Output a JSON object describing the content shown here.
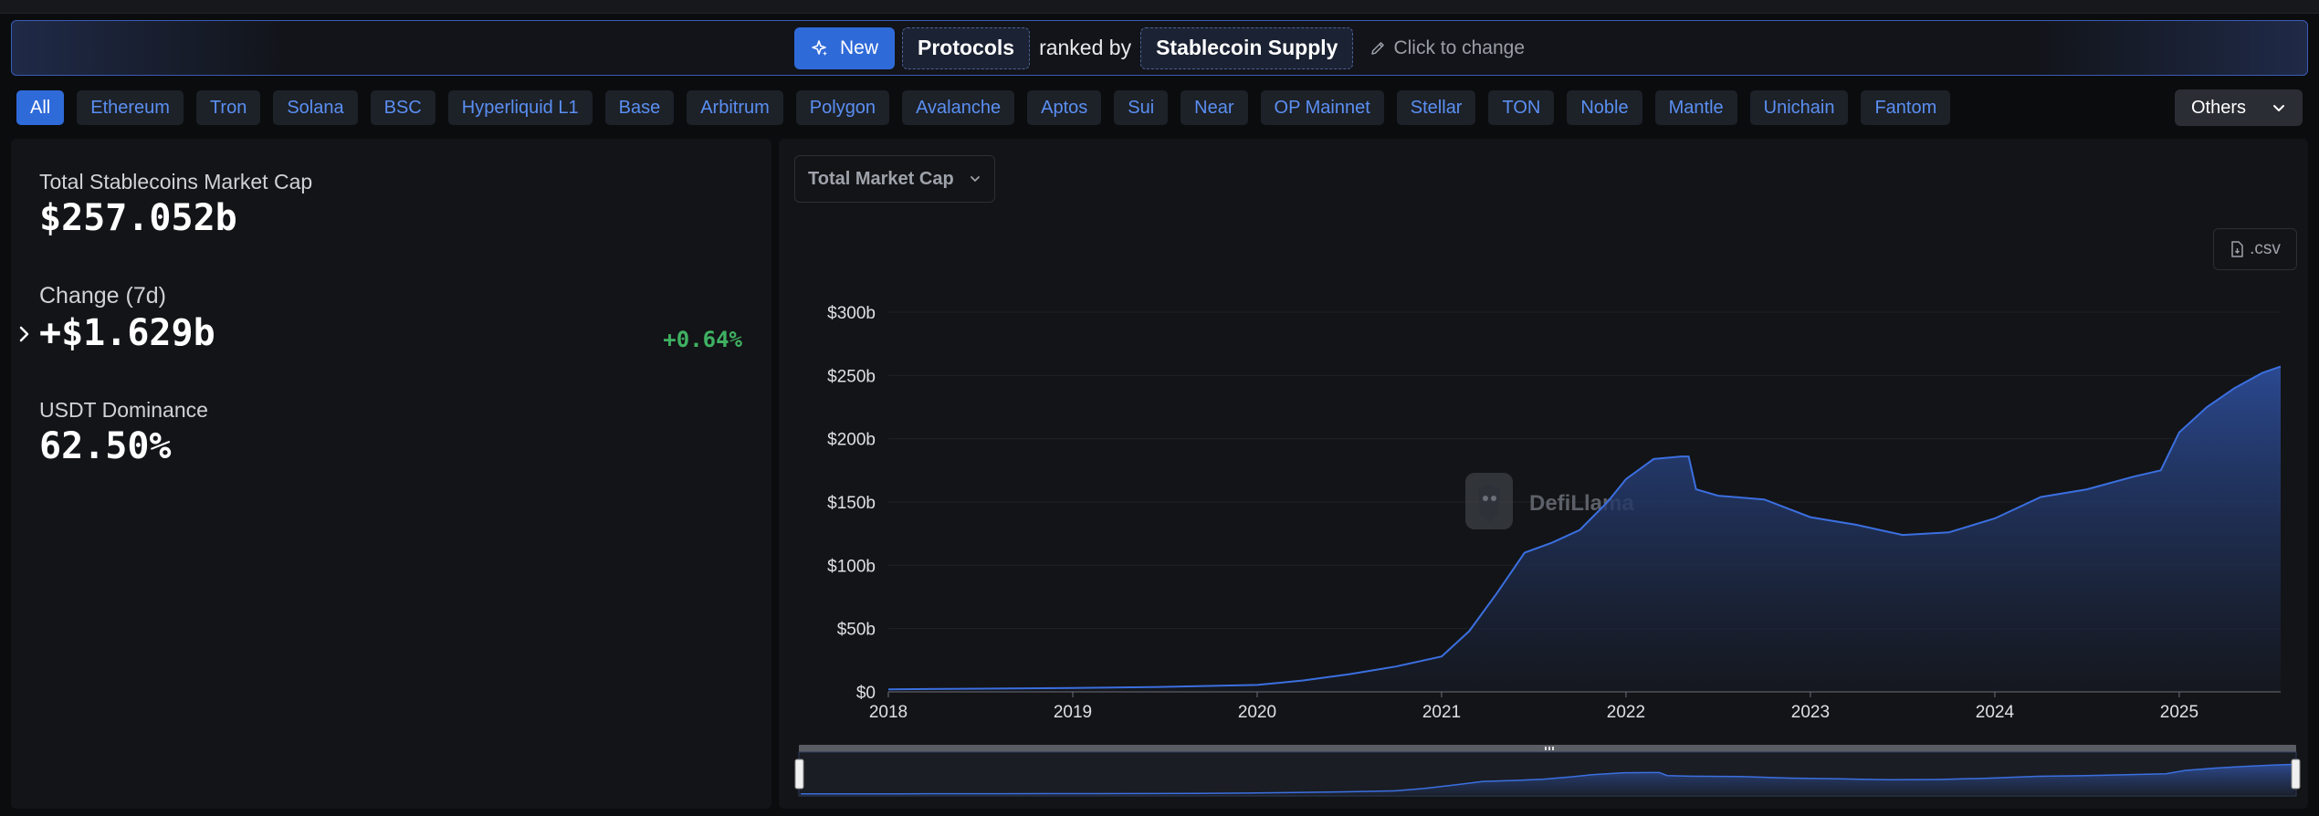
{
  "banner": {
    "new_label": "New",
    "protocols_label": "Protocols",
    "ranked_by": "ranked by",
    "metric_label": "Stablecoin Supply",
    "change_label": "Click to change"
  },
  "chains": [
    "All",
    "Ethereum",
    "Tron",
    "Solana",
    "BSC",
    "Hyperliquid L1",
    "Base",
    "Arbitrum",
    "Polygon",
    "Avalanche",
    "Aptos",
    "Sui",
    "Near",
    "OP Mainnet",
    "Stellar",
    "TON",
    "Noble",
    "Mantle",
    "Unichain",
    "Fantom"
  ],
  "active_chain": "All",
  "others_label": "Others",
  "stats": {
    "mcap_label": "Total Stablecoins Market Cap",
    "mcap_value": "$257.052b",
    "change_label": "Change (7d)",
    "change_value": "+$1.629b",
    "change_pct": "+0.64%",
    "dominance_label": "USDT Dominance",
    "dominance_value": "62.50%"
  },
  "chart_controls": {
    "metric_select": "Total Market Cap",
    "csv_label": ".csv",
    "watermark": "DefiLlama"
  },
  "colors": {
    "accent": "#2f6ad9",
    "line": "#3b6fe0",
    "positive": "#3fb162"
  },
  "chart_data": {
    "type": "area",
    "title": "Total Market Cap",
    "xlabel": "",
    "ylabel": "",
    "x_ticks": [
      "2018",
      "2019",
      "2020",
      "2021",
      "2022",
      "2023",
      "2024",
      "2025"
    ],
    "y_ticks": [
      "$0",
      "$50b",
      "$100b",
      "$150b",
      "$200b",
      "$250b",
      "$300b"
    ],
    "ylim": [
      0,
      300
    ],
    "xlim": [
      2018.0,
      2025.55
    ],
    "series": [
      {
        "name": "Total Stablecoins Market Cap ($b)",
        "x": [
          2018.0,
          2018.5,
          2019.0,
          2019.5,
          2020.0,
          2020.25,
          2020.5,
          2020.75,
          2021.0,
          2021.15,
          2021.3,
          2021.45,
          2021.6,
          2021.75,
          2021.9,
          2022.0,
          2022.15,
          2022.3,
          2022.34,
          2022.38,
          2022.5,
          2022.75,
          2023.0,
          2023.25,
          2023.5,
          2023.75,
          2024.0,
          2024.25,
          2024.5,
          2024.75,
          2024.9,
          2025.0,
          2025.15,
          2025.3,
          2025.45,
          2025.55
        ],
        "values": [
          2,
          2.5,
          3,
          4,
          5.5,
          9,
          14,
          20,
          28,
          48,
          78,
          110,
          118,
          128,
          150,
          168,
          184,
          186,
          186,
          160,
          155,
          152,
          138,
          132,
          124,
          126,
          137,
          154,
          160,
          170,
          175,
          205,
          225,
          240,
          252,
          257
        ]
      }
    ]
  }
}
